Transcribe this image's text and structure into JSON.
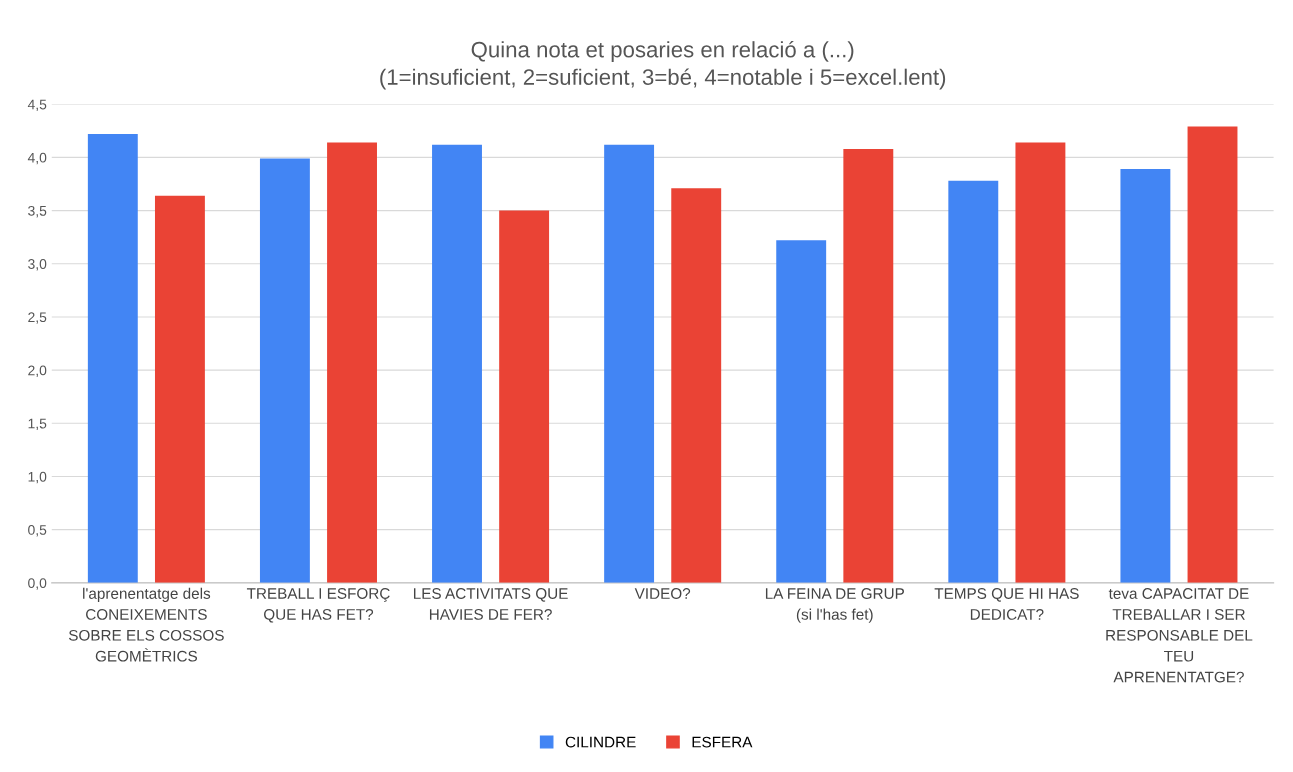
{
  "chart_data": {
    "type": "bar",
    "title": "Quina nota et posaries en relació a (...)\n(1=insuficient, 2=suficient, 3=bé, 4=notable i 5=excel.lent)",
    "categories": [
      "l'aprenentatge dels\nCONEIXEMENTS\nSOBRE ELS COSSOS\nGEOMÈTRICS",
      "TREBALL I ESFORÇ\nQUE HAS FET?",
      "LES ACTIVITATS QUE\nHAVIES DE FER?",
      "VIDEO?",
      "LA FEINA DE GRUP\n(si l'has fet)",
      "TEMPS QUE HI HAS\nDEDICAT?",
      "teva CAPACITAT DE\nTREBALLAR I SER\nRESPONSABLE DEL\nTEU\nAPRENENTATGE?"
    ],
    "series": [
      {
        "name": "CILINDRE",
        "color": "#4285f4",
        "values": [
          4.22,
          3.99,
          4.12,
          4.12,
          3.22,
          3.78,
          3.89
        ]
      },
      {
        "name": "ESFERA",
        "color": "#ea4335",
        "values": [
          3.64,
          4.14,
          3.5,
          3.71,
          4.08,
          4.14,
          4.29
        ]
      }
    ],
    "ylim": [
      0,
      4.5
    ],
    "yticks": [
      {
        "value": 0,
        "label": "0,0"
      },
      {
        "value": 0.5,
        "label": "0,5"
      },
      {
        "value": 1,
        "label": "1,0"
      },
      {
        "value": 1.5,
        "label": "1,5"
      },
      {
        "value": 2,
        "label": "2,0"
      },
      {
        "value": 2.5,
        "label": "2,5"
      },
      {
        "value": 3,
        "label": "3,0"
      },
      {
        "value": 3.5,
        "label": "3,5"
      },
      {
        "value": 4,
        "label": "4,0"
      },
      {
        "value": 4.5,
        "label": "4,5"
      }
    ],
    "grid": "y",
    "legend": "bottom"
  }
}
